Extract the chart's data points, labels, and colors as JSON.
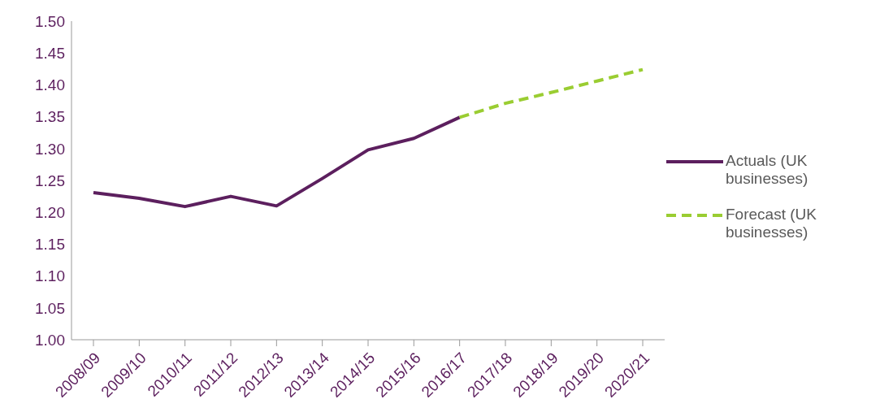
{
  "chart_data": {
    "type": "line",
    "categories": [
      "2008/09",
      "2009/10",
      "2010/11",
      "2011/12",
      "2012/13",
      "2013/14",
      "2014/15",
      "2015/16",
      "2016/17",
      "2017/18",
      "2018/19",
      "2019/20",
      "2020/21"
    ],
    "series": [
      {
        "name": "Actuals (UK businesses)",
        "color": "#5c1f5e",
        "line_style": "solid",
        "values": [
          1.231,
          1.222,
          1.209,
          1.225,
          1.21,
          1.253,
          1.298,
          1.316,
          1.349,
          null,
          null,
          null,
          null
        ]
      },
      {
        "name": "Forecast (UK businesses)",
        "color": "#9acd32",
        "line_style": "dashed",
        "values": [
          null,
          null,
          null,
          null,
          null,
          null,
          null,
          null,
          1.349,
          1.371,
          1.388,
          1.406,
          1.424
        ]
      }
    ],
    "ylim": [
      1.0,
      1.5
    ],
    "yticks": [
      {
        "value": 1.0,
        "label": "1.00"
      },
      {
        "value": 1.05,
        "label": "1.05"
      },
      {
        "value": 1.1,
        "label": "1.10"
      },
      {
        "value": 1.15,
        "label": "1.15"
      },
      {
        "value": 1.2,
        "label": "1.20"
      },
      {
        "value": 1.25,
        "label": "1.25"
      },
      {
        "value": 1.3,
        "label": "1.30"
      },
      {
        "value": 1.35,
        "label": "1.35"
      },
      {
        "value": 1.4,
        "label": "1.40"
      },
      {
        "value": 1.45,
        "label": "1.45"
      },
      {
        "value": 1.5,
        "label": "1.50"
      }
    ],
    "grid": false,
    "legend": "right",
    "marker": "none"
  }
}
